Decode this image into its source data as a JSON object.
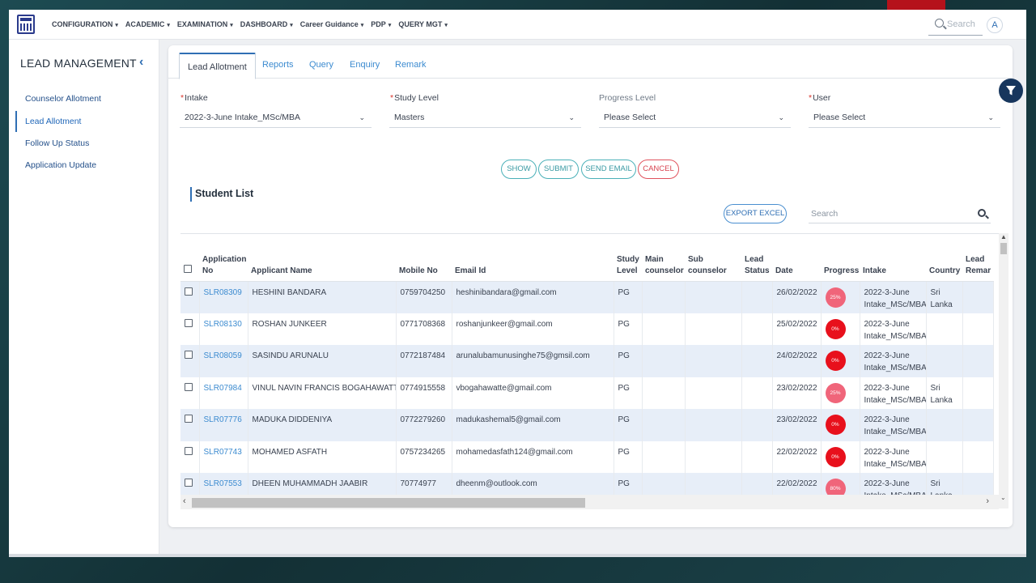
{
  "nav": {
    "menu": [
      "CONFIGURATION",
      "ACADEMIC",
      "EXAMINATION",
      "DASHBOARD",
      "Career Guidance",
      "PDP",
      "QUERY MGT"
    ],
    "search_placeholder": "Search",
    "avatar_letter": "A"
  },
  "sidebar": {
    "title": "LEAD MANAGEMENT",
    "items": [
      {
        "label": "Counselor Allotment"
      },
      {
        "label": "Lead Allotment"
      },
      {
        "label": "Follow Up Status"
      },
      {
        "label": "Application Update"
      }
    ]
  },
  "tabs": [
    "Lead Allotment",
    "Reports",
    "Query",
    "Enquiry",
    "Remark"
  ],
  "filters": {
    "intake": {
      "label": "Intake",
      "value": "2022-3-June Intake_MSc/MBA"
    },
    "study_level": {
      "label": "Study Level",
      "value": "Masters"
    },
    "progress_level": {
      "label": "Progress Level",
      "value": "Please Select"
    },
    "user": {
      "label": "User",
      "value": "Please Select"
    }
  },
  "buttons": {
    "show": "SHOW",
    "submit": "SUBMIT",
    "send_email": "SEND EMAIL",
    "cancel": "CANCEL",
    "export": "EXPORT EXCEL"
  },
  "student_list": {
    "title": "Student List",
    "search_placeholder": "Search",
    "columns": {
      "app_no_1": "Application",
      "app_no_2": "No",
      "name": "Applicant Name",
      "mobile": "Mobile No",
      "email": "Email Id",
      "study_1": "Study",
      "study_2": "Level",
      "main_1": "Main",
      "main_2": "counselor",
      "sub_1": "Sub",
      "sub_2": "counselor",
      "lead_1": "Lead",
      "lead_2": "Status",
      "date": "Date",
      "progress": "Progress",
      "intake": "Intake",
      "country": "Country",
      "remark_1": "Lead",
      "remark_2": "Remar"
    },
    "rows": [
      {
        "app": "SLR08309",
        "name": "HESHINI BANDARA",
        "mobile": "0759704250",
        "email": "heshinibandara@gmail.com",
        "level": "PG",
        "date": "26/02/2022",
        "progress": "25%",
        "intake_1": "2022-3-June",
        "intake_2": "Intake_MSc/MBA",
        "country_1": "Sri",
        "country_2": "Lanka"
      },
      {
        "app": "SLR08130",
        "name": "ROSHAN JUNKEER",
        "mobile": "0771708368",
        "email": "roshanjunkeer@gmail.com",
        "level": "PG",
        "date": "25/02/2022",
        "progress": "0%",
        "intake_1": "2022-3-June",
        "intake_2": "Intake_MSc/MBA",
        "country_1": "",
        "country_2": ""
      },
      {
        "app": "SLR08059",
        "name": "SASINDU ARUNALU",
        "mobile": "0772187484",
        "email": "arunalubamunusinghe75@gmsil.com",
        "level": "PG",
        "date": "24/02/2022",
        "progress": "0%",
        "intake_1": "2022-3-June",
        "intake_2": "Intake_MSc/MBA",
        "country_1": "",
        "country_2": ""
      },
      {
        "app": "SLR07984",
        "name": "VINUL NAVIN FRANCIS BOGAHAWATTE",
        "mobile": "0774915558",
        "email": "vbogahawatte@gmail.com",
        "level": "PG",
        "date": "23/02/2022",
        "progress": "25%",
        "intake_1": "2022-3-June",
        "intake_2": "Intake_MSc/MBA",
        "country_1": "Sri",
        "country_2": "Lanka"
      },
      {
        "app": "SLR07776",
        "name": "MADUKA DIDDENIYA",
        "mobile": "0772279260",
        "email": "madukashemal5@gmail.com",
        "level": "PG",
        "date": "23/02/2022",
        "progress": "0%",
        "intake_1": "2022-3-June",
        "intake_2": "Intake_MSc/MBA",
        "country_1": "",
        "country_2": ""
      },
      {
        "app": "SLR07743",
        "name": "MOHAMED ASFATH",
        "mobile": "0757234265",
        "email": "mohamedasfath124@gmail.com",
        "level": "PG",
        "date": "22/02/2022",
        "progress": "0%",
        "intake_1": "2022-3-June",
        "intake_2": "Intake_MSc/MBA",
        "country_1": "",
        "country_2": ""
      },
      {
        "app": "SLR07553",
        "name": "DHEEN MUHAMMADH JAABIR",
        "mobile": "70774977",
        "email": "dheenm@outlook.com",
        "level": "PG",
        "date": "22/02/2022",
        "progress": "80%",
        "intake_1": "2022-3-June",
        "intake_2": "Intake_MSc/MBA",
        "country_1": "Sri",
        "country_2": "Lanka"
      }
    ]
  },
  "colors": {
    "accent": "#2f6fb4",
    "row_stripe": "#e7eef8",
    "progress_zero": "#e8101c",
    "progress_partial": "#f0657a"
  }
}
